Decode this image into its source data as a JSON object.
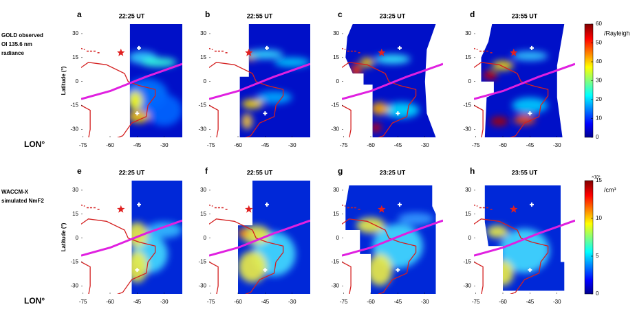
{
  "rows": [
    {
      "label": [
        "GOLD observed",
        "OI 135.6 nm",
        "radiance"
      ],
      "lon_label": "LON°",
      "panels": [
        {
          "letter": "a",
          "title": "22:25 UT"
        },
        {
          "letter": "b",
          "title": "22:55 UT"
        },
        {
          "letter": "c",
          "title": "23:25 UT"
        },
        {
          "letter": "d",
          "title": "23:55 UT"
        }
      ],
      "colorbar": {
        "unit": "/Rayleigh",
        "lim": [
          0,
          60
        ],
        "ticks": [
          0,
          10,
          20,
          30,
          40,
          50,
          60
        ]
      }
    },
    {
      "label": [
        "WACCM-X",
        "simulated NmF2"
      ],
      "lon_label": "LON°",
      "panels": [
        {
          "letter": "e",
          "title": "22:25 UT"
        },
        {
          "letter": "f",
          "title": "22:55 UT"
        },
        {
          "letter": "g",
          "title": "23:25 UT"
        },
        {
          "letter": "h",
          "title": "23:55 UT"
        }
      ],
      "colorbar": {
        "unit": "/cm³",
        "multiplier": "×10⁵",
        "lim": [
          0,
          15
        ],
        "ticks": [
          0,
          5,
          10,
          15
        ]
      }
    }
  ],
  "axes": {
    "ylabel": "Latitude (°)",
    "xlim": [
      -76,
      -20
    ],
    "ylim": [
      -35,
      36
    ],
    "xticks": [
      -75,
      -60,
      -45,
      -30
    ],
    "yticks": [
      -30,
      -15,
      0,
      15,
      30
    ]
  }
}
